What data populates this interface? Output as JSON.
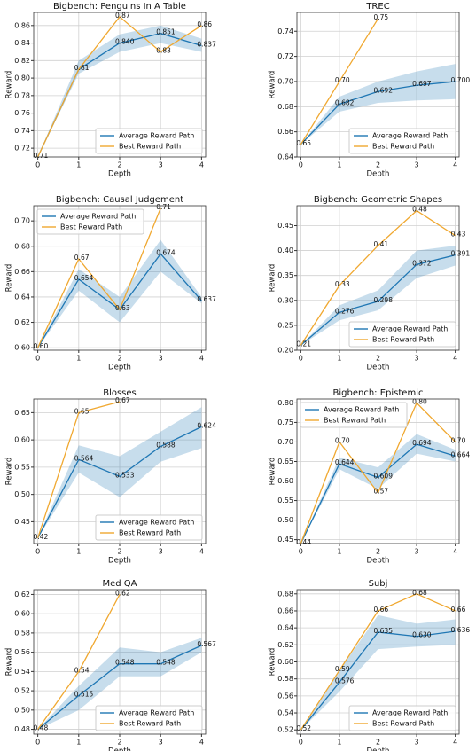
{
  "chart_data": [
    {
      "type": "line",
      "title": "Bigbench: Penguins In A Table",
      "xlabel": "Depth",
      "ylabel": "Reward",
      "x": [
        0,
        1,
        2,
        3,
        4
      ],
      "xlim": [
        -0.1,
        4.1
      ],
      "xticks": [
        0,
        1,
        2,
        3,
        4
      ],
      "ylim": [
        0.71,
        0.875
      ],
      "yticks": [
        0.72,
        0.74,
        0.76,
        0.78,
        {
          "value": 0.8,
          "label": "0.80"
        },
        0.82,
        0.84,
        0.86
      ],
      "grid": true,
      "legend": "lower right",
      "series": [
        {
          "name": "Average Reward Path",
          "color": "#1f77b4",
          "values": [
            0.71,
            0.81,
            0.84,
            0.851,
            0.837
          ],
          "value_labels": [
            "0.71",
            "0.81",
            "0.840",
            "0.851",
            "0.837"
          ],
          "lower": [
            0.71,
            0.805,
            0.83,
            0.84,
            0.83
          ],
          "upper": [
            0.71,
            0.82,
            0.85,
            0.86,
            0.845
          ]
        },
        {
          "name": "Best Reward Path",
          "color": "#f0a830",
          "values": [
            0.71,
            0.81,
            0.87,
            0.83,
            0.86
          ],
          "value_labels": [
            null,
            null,
            "0.87",
            "0.83",
            "0.86"
          ]
        }
      ]
    },
    {
      "type": "line",
      "title": "TREC",
      "xlabel": "Depth",
      "ylabel": "Reward",
      "x": [
        0,
        1,
        2,
        3,
        4
      ],
      "xlim": [
        -0.1,
        4.1
      ],
      "xticks": [
        0,
        1,
        2,
        3,
        4
      ],
      "ylim": [
        0.64,
        0.755
      ],
      "yticks": [
        0.64,
        0.66,
        0.68,
        {
          "value": 0.7,
          "label": "0.70"
        },
        0.72,
        0.74
      ],
      "grid": true,
      "legend": "lower right",
      "series": [
        {
          "name": "Average Reward Path",
          "color": "#1f77b4",
          "values": [
            0.65,
            0.682,
            0.692,
            0.697,
            0.7
          ],
          "value_labels": [
            "0.65",
            "0.682",
            "0.692",
            "0.697",
            "0.700"
          ],
          "lower": [
            0.65,
            0.676,
            0.683,
            0.685,
            0.686
          ],
          "upper": [
            0.65,
            0.688,
            0.7,
            0.708,
            0.714
          ]
        },
        {
          "name": "Best Reward Path",
          "color": "#f0a830",
          "values": [
            0.65,
            0.7,
            0.75,
            null,
            null
          ],
          "value_labels": [
            null,
            "0.70",
            "0.75",
            null,
            null
          ]
        }
      ]
    },
    {
      "type": "line",
      "title": "Bigbench: Causal Judgement",
      "xlabel": "Depth",
      "ylabel": "Reward",
      "x": [
        0,
        1,
        2,
        3,
        4
      ],
      "xlim": [
        -0.1,
        4.1
      ],
      "xticks": [
        0,
        1,
        2,
        3,
        4
      ],
      "ylim": [
        0.598,
        0.712
      ],
      "yticks": [
        {
          "value": 0.6,
          "label": "0.60"
        },
        0.62,
        0.64,
        0.66,
        0.68,
        {
          "value": 0.7,
          "label": "0.70"
        }
      ],
      "grid": true,
      "legend": "upper left",
      "series": [
        {
          "name": "Average Reward Path",
          "color": "#1f77b4",
          "values": [
            0.6,
            0.654,
            0.63,
            0.674,
            0.637
          ],
          "value_labels": [
            "0.60",
            "0.654",
            "0.63",
            "0.674",
            "0.637"
          ],
          "lower": [
            0.6,
            0.645,
            0.62,
            0.66,
            0.635
          ],
          "upper": [
            0.6,
            0.662,
            0.64,
            0.685,
            0.64
          ]
        },
        {
          "name": "Best Reward Path",
          "color": "#f0a830",
          "values": [
            0.6,
            0.67,
            0.63,
            0.71,
            null
          ],
          "value_labels": [
            null,
            "0.67",
            null,
            "0.71",
            null
          ]
        }
      ]
    },
    {
      "type": "line",
      "title": "Bigbench: Geometric Shapes",
      "xlabel": "Depth",
      "ylabel": "Reward",
      "x": [
        0,
        1,
        2,
        3,
        4
      ],
      "xlim": [
        -0.1,
        4.1
      ],
      "xticks": [
        0,
        1,
        2,
        3,
        4
      ],
      "ylim": [
        0.2,
        0.49
      ],
      "yticks": [
        {
          "value": 0.2,
          "label": "0.20"
        },
        0.25,
        {
          "value": 0.3,
          "label": "0.30"
        },
        0.35,
        {
          "value": 0.4,
          "label": "0.40"
        },
        0.45
      ],
      "grid": true,
      "legend": "lower right",
      "series": [
        {
          "name": "Average Reward Path",
          "color": "#1f77b4",
          "values": [
            0.21,
            0.276,
            0.298,
            0.372,
            0.391
          ],
          "value_labels": [
            "0.21",
            "0.276",
            "0.298",
            "0.372",
            "0.391"
          ],
          "lower": [
            0.21,
            0.26,
            0.28,
            0.345,
            0.37
          ],
          "upper": [
            0.21,
            0.29,
            0.32,
            0.4,
            0.41
          ]
        },
        {
          "name": "Best Reward Path",
          "color": "#f0a830",
          "values": [
            0.21,
            0.33,
            0.41,
            0.48,
            0.43
          ],
          "value_labels": [
            null,
            "0.33",
            "0.41",
            "0.48",
            "0.43"
          ]
        }
      ]
    },
    {
      "type": "line",
      "title": "Blosses",
      "xlabel": "Depth",
      "ylabel": "Reward",
      "x": [
        0,
        1,
        2,
        3,
        4
      ],
      "xlim": [
        -0.1,
        4.1
      ],
      "xticks": [
        0,
        1,
        2,
        3,
        4
      ],
      "ylim": [
        0.41,
        0.675
      ],
      "yticks": [
        0.45,
        {
          "value": 0.5,
          "label": "0.50"
        },
        0.55,
        {
          "value": 0.6,
          "label": "0.60"
        },
        0.65
      ],
      "grid": true,
      "legend": "lower right",
      "series": [
        {
          "name": "Average Reward Path",
          "color": "#1f77b4",
          "values": [
            0.42,
            0.564,
            0.533,
            0.588,
            0.624
          ],
          "value_labels": [
            "0.42",
            "0.564",
            "0.533",
            "0.588",
            "0.624"
          ],
          "lower": [
            0.42,
            0.54,
            0.495,
            0.56,
            0.585
          ],
          "upper": [
            0.42,
            0.59,
            0.57,
            0.615,
            0.66
          ]
        },
        {
          "name": "Best Reward Path",
          "color": "#f0a830",
          "values": [
            0.42,
            0.65,
            0.67,
            null,
            null
          ],
          "value_labels": [
            null,
            "0.65",
            "0.67",
            null,
            null
          ]
        }
      ]
    },
    {
      "type": "line",
      "title": "Bigbench: Epistemic",
      "xlabel": "Depth",
      "ylabel": "Reward",
      "x": [
        0,
        1,
        2,
        3,
        4
      ],
      "xlim": [
        -0.1,
        4.1
      ],
      "xticks": [
        0,
        1,
        2,
        3,
        4
      ],
      "ylim": [
        0.44,
        0.81
      ],
      "yticks": [
        0.45,
        {
          "value": 0.5,
          "label": "0.50"
        },
        0.55,
        {
          "value": 0.6,
          "label": "0.60"
        },
        0.65,
        {
          "value": 0.7,
          "label": "0.70"
        },
        0.75,
        {
          "value": 0.8,
          "label": "0.80"
        }
      ],
      "grid": true,
      "legend": "upper left",
      "series": [
        {
          "name": "Average Reward Path",
          "color": "#1f77b4",
          "values": [
            0.44,
            0.644,
            0.609,
            0.694,
            0.664
          ],
          "value_labels": [
            "0.44",
            "0.644",
            "0.609",
            "0.694",
            "0.664"
          ],
          "lower": [
            0.44,
            0.63,
            0.58,
            0.67,
            0.65
          ],
          "upper": [
            0.44,
            0.66,
            0.635,
            0.72,
            0.68
          ]
        },
        {
          "name": "Best Reward Path",
          "color": "#f0a830",
          "values": [
            0.44,
            0.7,
            0.57,
            0.8,
            0.7
          ],
          "value_labels": [
            null,
            "0.70",
            "0.57",
            "0.80",
            "0.70"
          ]
        }
      ]
    },
    {
      "type": "line",
      "title": "Med QA",
      "xlabel": "Depth",
      "ylabel": "Reward",
      "x": [
        0,
        1,
        2,
        3,
        4
      ],
      "xlim": [
        -0.1,
        4.1
      ],
      "xticks": [
        0,
        1,
        2,
        3,
        4
      ],
      "ylim": [
        0.475,
        0.625
      ],
      "yticks": [
        0.48,
        {
          "value": 0.5,
          "label": "0.50"
        },
        0.52,
        0.54,
        0.56,
        0.58,
        {
          "value": 0.6,
          "label": "0.60"
        },
        0.62
      ],
      "grid": true,
      "legend": "lower right",
      "series": [
        {
          "name": "Average Reward Path",
          "color": "#1f77b4",
          "values": [
            0.48,
            0.515,
            0.548,
            0.548,
            0.567
          ],
          "value_labels": [
            "0.48",
            "0.515",
            "0.548",
            "0.548",
            "0.567"
          ],
          "lower": [
            0.48,
            0.5,
            0.535,
            0.535,
            0.56
          ],
          "upper": [
            0.48,
            0.525,
            0.565,
            0.56,
            0.575
          ]
        },
        {
          "name": "Best Reward Path",
          "color": "#f0a830",
          "values": [
            0.48,
            0.54,
            0.62,
            null,
            null
          ],
          "value_labels": [
            null,
            "0.54",
            "0.62",
            null,
            null
          ]
        }
      ]
    },
    {
      "type": "line",
      "title": "Subj",
      "xlabel": "Depth",
      "ylabel": "Reward",
      "x": [
        0,
        1,
        2,
        3,
        4
      ],
      "xlim": [
        -0.1,
        4.1
      ],
      "xticks": [
        0,
        1,
        2,
        3,
        4
      ],
      "ylim": [
        0.515,
        0.685
      ],
      "yticks": [
        0.52,
        0.54,
        0.56,
        0.58,
        {
          "value": 0.6,
          "label": "0.60"
        },
        0.62,
        0.64,
        0.66,
        0.68
      ],
      "grid": true,
      "legend": "lower right",
      "series": [
        {
          "name": "Average Reward Path",
          "color": "#1f77b4",
          "values": [
            0.52,
            0.576,
            0.635,
            0.63,
            0.636
          ],
          "value_labels": [
            "0.52",
            "0.576",
            "0.635",
            "0.630",
            "0.636"
          ],
          "lower": [
            0.52,
            0.565,
            0.615,
            0.618,
            0.62
          ],
          "upper": [
            0.52,
            0.59,
            0.655,
            0.645,
            0.65
          ]
        },
        {
          "name": "Best Reward Path",
          "color": "#f0a830",
          "values": [
            0.52,
            0.59,
            0.66,
            0.68,
            0.66
          ],
          "value_labels": [
            null,
            "0.59",
            "0.66",
            "0.68",
            "0.66"
          ]
        }
      ]
    }
  ]
}
